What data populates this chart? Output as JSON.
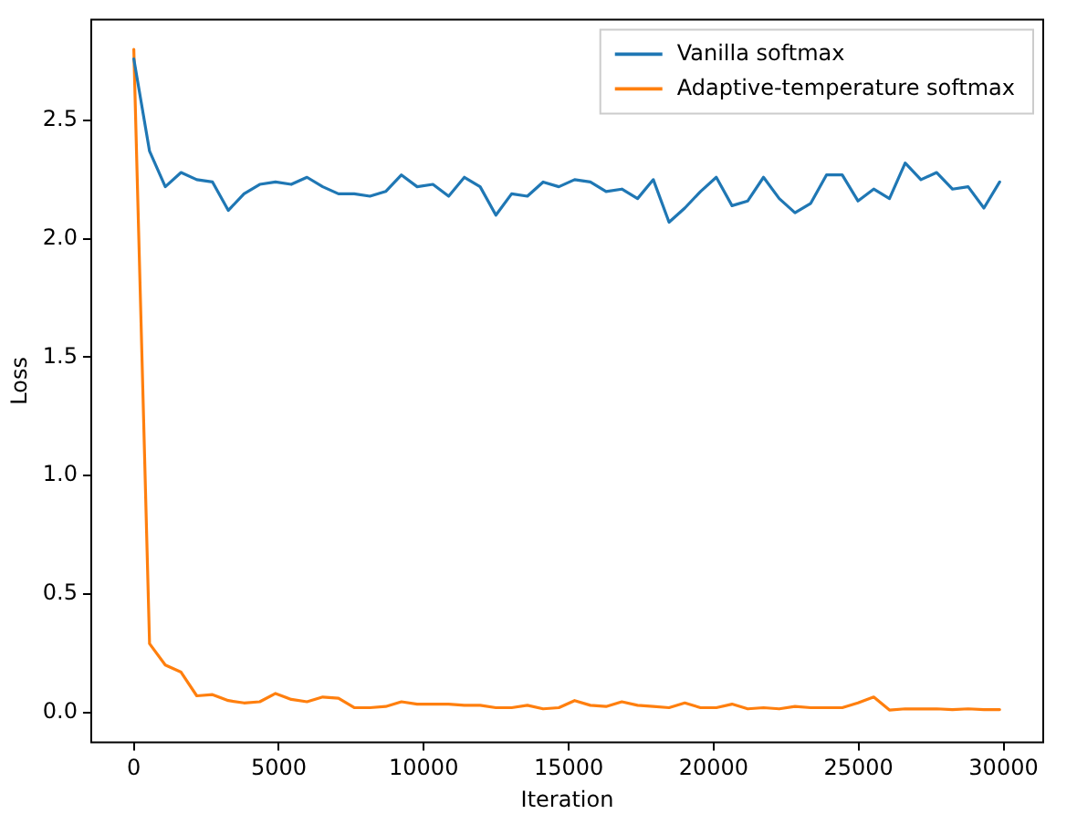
{
  "chart_data": {
    "type": "line",
    "xlabel": "Iteration",
    "ylabel": "Loss",
    "x": [
      0,
      543,
      1086,
      1629,
      2172,
      2715,
      3258,
      3801,
      4344,
      4887,
      5430,
      5973,
      6516,
      7059,
      7602,
      8145,
      8688,
      9231,
      9774,
      10317,
      10860,
      11403,
      11946,
      12489,
      13032,
      13575,
      14118,
      14661,
      15204,
      15747,
      16290,
      16833,
      17376,
      17919,
      18462,
      19005,
      19548,
      20091,
      20634,
      21177,
      21720,
      22263,
      22806,
      23349,
      23892,
      24435,
      24978,
      25521,
      26064,
      26607,
      27150,
      27693,
      28236,
      28779,
      29322,
      29865
    ],
    "series": [
      {
        "name": "Vanilla softmax",
        "color": "#1f77b4",
        "values": [
          2.76,
          2.37,
          2.22,
          2.28,
          2.25,
          2.24,
          2.12,
          2.19,
          2.23,
          2.24,
          2.23,
          2.26,
          2.22,
          2.19,
          2.19,
          2.18,
          2.2,
          2.27,
          2.22,
          2.23,
          2.18,
          2.26,
          2.22,
          2.1,
          2.19,
          2.18,
          2.24,
          2.22,
          2.25,
          2.24,
          2.2,
          2.21,
          2.17,
          2.25,
          2.07,
          2.13,
          2.2,
          2.26,
          2.14,
          2.16,
          2.26,
          2.17,
          2.11,
          2.15,
          2.27,
          2.27,
          2.16,
          2.21,
          2.17,
          2.32,
          2.25,
          2.28,
          2.21,
          2.22,
          2.13,
          2.24
        ]
      },
      {
        "name": "Adaptive-temperature softmax",
        "color": "#ff7f0e",
        "values": [
          2.8,
          0.29,
          0.2,
          0.17,
          0.07,
          0.075,
          0.05,
          0.04,
          0.045,
          0.08,
          0.055,
          0.045,
          0.065,
          0.06,
          0.02,
          0.02,
          0.025,
          0.045,
          0.035,
          0.035,
          0.035,
          0.03,
          0.03,
          0.02,
          0.02,
          0.03,
          0.015,
          0.02,
          0.05,
          0.03,
          0.025,
          0.045,
          0.03,
          0.025,
          0.02,
          0.04,
          0.02,
          0.02,
          0.035,
          0.015,
          0.02,
          0.015,
          0.025,
          0.02,
          0.02,
          0.02,
          0.04,
          0.065,
          0.01,
          0.015,
          0.015,
          0.015,
          0.012,
          0.015,
          0.012,
          0.012
        ]
      }
    ],
    "xlim": [
      -1500,
      31400
    ],
    "xticks": [
      0,
      5000,
      10000,
      15000,
      20000,
      25000,
      30000
    ],
    "ylim": [
      -0.13,
      2.93
    ],
    "yticks": [
      {
        "value": 0,
        "label": "0.0"
      },
      {
        "value": 0.5,
        "label": "0.5"
      },
      {
        "value": 1,
        "label": "1.0"
      },
      {
        "value": 1.5,
        "label": "1.5"
      },
      {
        "value": 2,
        "label": "2.0"
      },
      {
        "value": 2.5,
        "label": "2.5"
      }
    ],
    "legend": "top right",
    "grid": false,
    "marker": "none",
    "line_style": "solid"
  }
}
